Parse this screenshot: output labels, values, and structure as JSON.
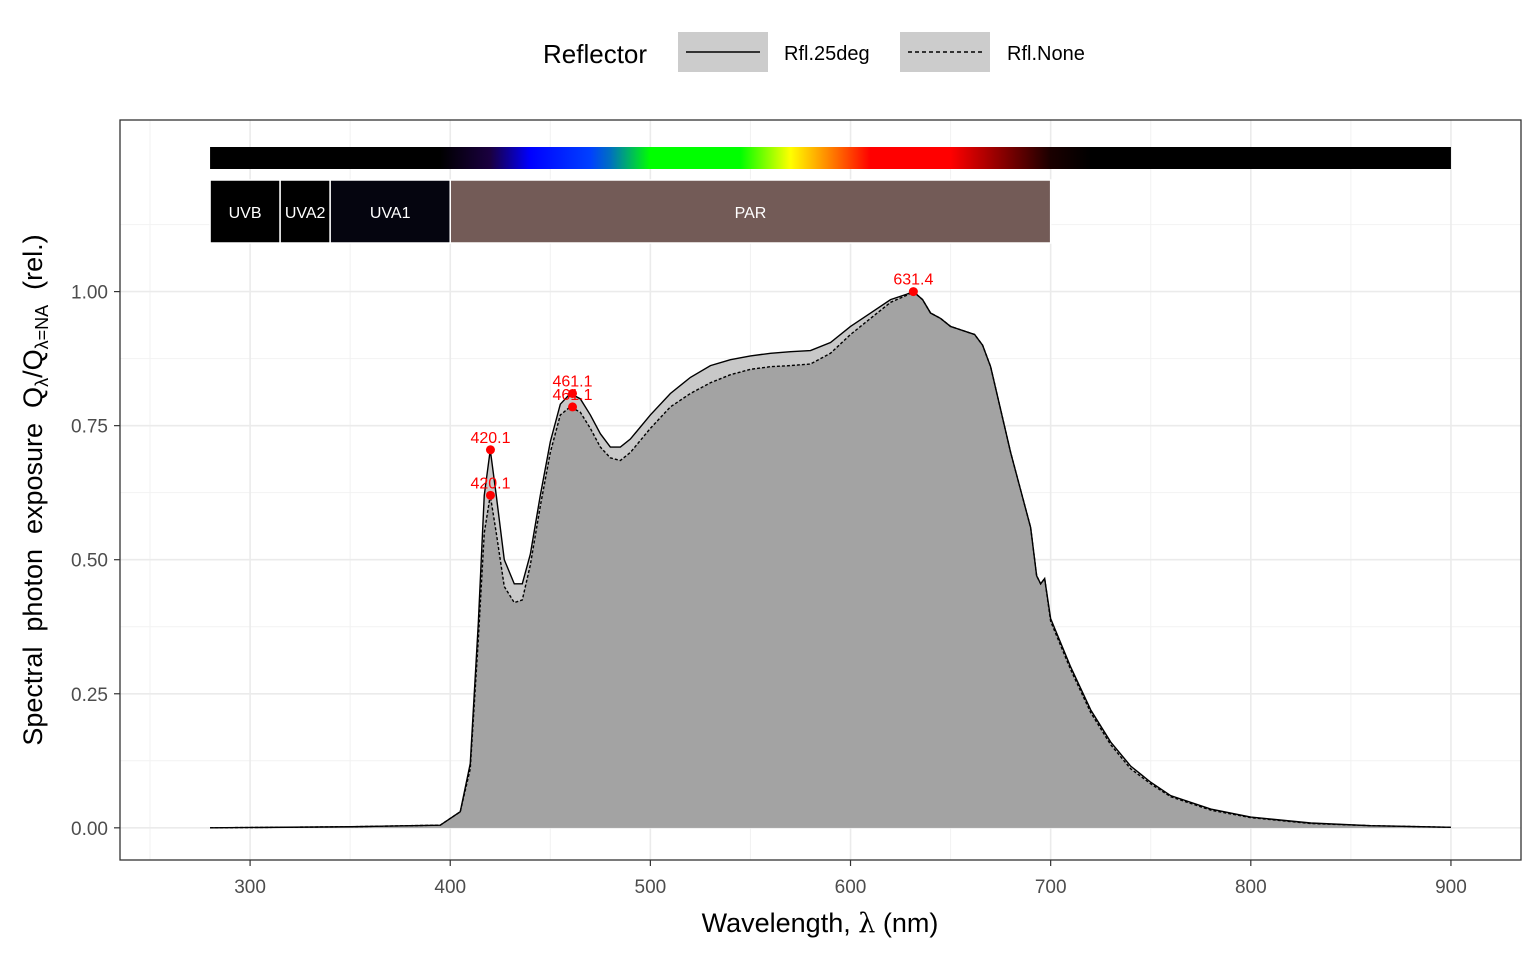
{
  "chart_data": {
    "type": "area",
    "xlabel_main": "Wavelength, ",
    "xlabel_symbol": "λ",
    "xlabel_unit": " (nm)",
    "ylabel_parts": {
      "a": "Spectral  photon  exposure  ",
      "q1": "Q",
      "s1": "λ",
      "slash": "/",
      "q2": "Q",
      "s2": "λ=NA",
      "b": "  (rel.)"
    },
    "xlim": [
      235,
      935
    ],
    "ylim": [
      -0.06,
      1.32
    ],
    "x_ticks": [
      300,
      400,
      500,
      600,
      700,
      800,
      900
    ],
    "x_tick_labels": [
      "300",
      "400",
      "500",
      "600",
      "700",
      "800",
      "900"
    ],
    "y_ticks": [
      0,
      0.25,
      0.5,
      0.75,
      1.0
    ],
    "y_tick_labels": [
      "0.00",
      "0.25",
      "0.50",
      "0.75",
      "1.00"
    ],
    "grid": true,
    "legend": {
      "title": "Reflector",
      "placement": "top",
      "entries": [
        {
          "label": "Rfl.25deg",
          "linetype": "solid"
        },
        {
          "label": "Rfl.None",
          "linetype": "dashed"
        }
      ]
    },
    "series": [
      {
        "name": "Rfl.25deg",
        "linetype": "solid",
        "x": [
          280,
          350,
          395,
          405,
          410,
          414,
          417,
          420,
          423,
          427,
          432,
          436,
          440,
          445,
          450,
          455,
          460,
          465,
          470,
          475,
          480,
          485,
          490,
          500,
          510,
          520,
          530,
          540,
          550,
          560,
          570,
          580,
          590,
          600,
          610,
          620,
          628,
          631.4,
          636,
          640,
          645,
          650,
          654,
          658,
          662,
          666,
          670,
          675,
          680,
          685,
          690,
          693,
          695,
          697,
          700,
          710,
          720,
          730,
          740,
          750,
          760,
          780,
          800,
          830,
          860,
          900
        ],
        "y": [
          0,
          0.002,
          0.005,
          0.03,
          0.12,
          0.38,
          0.62,
          0.705,
          0.62,
          0.5,
          0.455,
          0.455,
          0.51,
          0.62,
          0.72,
          0.79,
          0.81,
          0.8,
          0.77,
          0.735,
          0.71,
          0.71,
          0.725,
          0.77,
          0.81,
          0.84,
          0.862,
          0.873,
          0.88,
          0.885,
          0.888,
          0.89,
          0.905,
          0.935,
          0.96,
          0.985,
          0.995,
          1.0,
          0.985,
          0.96,
          0.95,
          0.935,
          0.93,
          0.925,
          0.92,
          0.9,
          0.86,
          0.78,
          0.7,
          0.63,
          0.56,
          0.47,
          0.455,
          0.465,
          0.39,
          0.3,
          0.22,
          0.16,
          0.115,
          0.085,
          0.06,
          0.035,
          0.02,
          0.009,
          0.004,
          0.001
        ]
      },
      {
        "name": "Rfl.None",
        "linetype": "dashed",
        "x": [
          280,
          350,
          395,
          405,
          410,
          414,
          417,
          420,
          423,
          427,
          432,
          436,
          440,
          445,
          450,
          455,
          460,
          465,
          470,
          475,
          480,
          485,
          490,
          500,
          510,
          520,
          530,
          540,
          550,
          560,
          570,
          580,
          590,
          600,
          610,
          620,
          628,
          631.4,
          636,
          640,
          645,
          650,
          654,
          658,
          662,
          666,
          670,
          675,
          680,
          685,
          690,
          693,
          695,
          697,
          700,
          710,
          720,
          730,
          740,
          750,
          760,
          780,
          800,
          830,
          860,
          900
        ],
        "y": [
          0,
          0.002,
          0.005,
          0.03,
          0.11,
          0.35,
          0.55,
          0.62,
          0.55,
          0.45,
          0.42,
          0.425,
          0.49,
          0.6,
          0.7,
          0.77,
          0.785,
          0.775,
          0.745,
          0.71,
          0.69,
          0.685,
          0.7,
          0.745,
          0.785,
          0.81,
          0.83,
          0.845,
          0.855,
          0.86,
          0.862,
          0.865,
          0.885,
          0.92,
          0.95,
          0.98,
          0.993,
          1.0,
          0.985,
          0.96,
          0.95,
          0.935,
          0.93,
          0.925,
          0.92,
          0.9,
          0.86,
          0.78,
          0.7,
          0.63,
          0.56,
          0.47,
          0.455,
          0.465,
          0.385,
          0.295,
          0.215,
          0.155,
          0.11,
          0.082,
          0.058,
          0.033,
          0.019,
          0.008,
          0.004,
          0.001
        ]
      }
    ],
    "peaks": [
      {
        "x": 420.1,
        "y": 0.705,
        "label": "420.1"
      },
      {
        "x": 420.1,
        "y": 0.62,
        "label": "420.1"
      },
      {
        "x": 461.1,
        "y": 0.81,
        "label": "461.1"
      },
      {
        "x": 461.1,
        "y": 0.785,
        "label": "461.1"
      },
      {
        "x": 631.4,
        "y": 1.0,
        "label": "631.4"
      }
    ],
    "wavebands": [
      {
        "label": "UVB",
        "xmin": 280,
        "xmax": 315,
        "color": "#000000"
      },
      {
        "label": "UVA2",
        "xmin": 315,
        "xmax": 340,
        "color": "#000000"
      },
      {
        "label": "UVA1",
        "xmin": 340,
        "xmax": 400,
        "color": "#05050f"
      },
      {
        "label": "PAR",
        "xmin": 400,
        "xmax": 700,
        "color": "#735b57"
      }
    ],
    "color_bar": {
      "xmin": 280,
      "xmax": 900,
      "stops": [
        {
          "x": 280,
          "color": "#000000"
        },
        {
          "x": 395,
          "color": "#000000"
        },
        {
          "x": 420,
          "color": "#1a0040"
        },
        {
          "x": 440,
          "color": "#0000ff"
        },
        {
          "x": 470,
          "color": "#0040ff"
        },
        {
          "x": 480,
          "color": "#0070c0"
        },
        {
          "x": 500,
          "color": "#00ff00"
        },
        {
          "x": 545,
          "color": "#00ff00"
        },
        {
          "x": 570,
          "color": "#ffff00"
        },
        {
          "x": 590,
          "color": "#ff8000"
        },
        {
          "x": 610,
          "color": "#ff0000"
        },
        {
          "x": 650,
          "color": "#ff0000"
        },
        {
          "x": 700,
          "color": "#1a0000"
        },
        {
          "x": 720,
          "color": "#000000"
        },
        {
          "x": 900,
          "color": "#000000"
        }
      ]
    },
    "colors": {
      "fill_rfl25": "#c8c8c8",
      "fill_rflnone": "#a3a3a3",
      "peak": "#ff0000"
    }
  }
}
